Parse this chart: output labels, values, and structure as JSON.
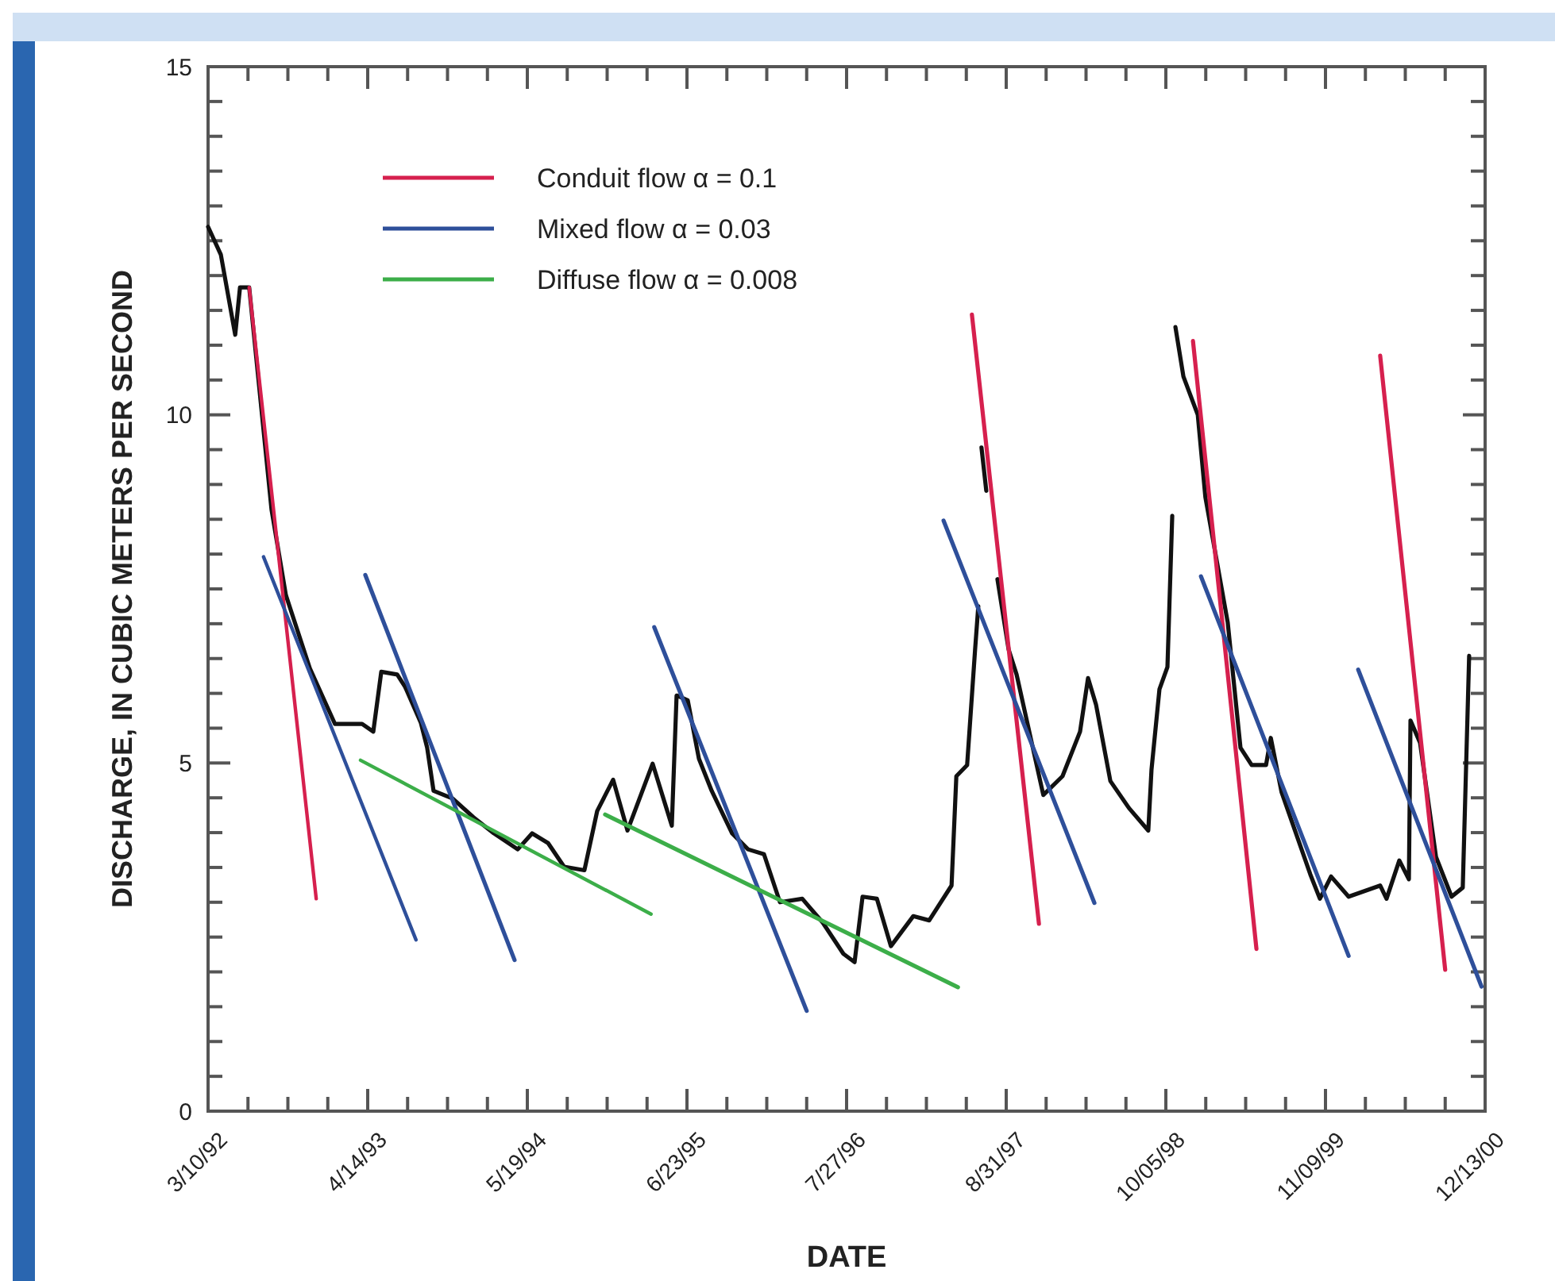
{
  "chart_data": {
    "type": "line",
    "xlabel": "DATE",
    "ylabel": "DISCHARGE, IN CUBIC METERS PER SECOND",
    "xlim": [
      "1992-03-10",
      "2000-12-13"
    ],
    "ylim": [
      0,
      15
    ],
    "xticks": [
      {
        "value": "1992-03-10",
        "label": "3/10/92"
      },
      {
        "value": "1992-06-18",
        "label": null
      },
      {
        "value": "1992-09-26",
        "label": null
      },
      {
        "value": "1993-01-04",
        "label": null
      },
      {
        "value": "1993-04-14",
        "label": "4/14/93"
      },
      {
        "value": "1993-07-23",
        "label": null
      },
      {
        "value": "1993-10-31",
        "label": null
      },
      {
        "value": "1994-02-08",
        "label": null
      },
      {
        "value": "1994-05-19",
        "label": "5/19/94"
      },
      {
        "value": "1994-08-27",
        "label": null
      },
      {
        "value": "1994-12-05",
        "label": null
      },
      {
        "value": "1995-03-15",
        "label": null
      },
      {
        "value": "1995-06-23",
        "label": "6/23/95"
      },
      {
        "value": "1995-10-01",
        "label": null
      },
      {
        "value": "1996-01-09",
        "label": null
      },
      {
        "value": "1996-04-18",
        "label": null
      },
      {
        "value": "1996-07-27",
        "label": "7/27/96"
      },
      {
        "value": "1996-11-04",
        "label": null
      },
      {
        "value": "1997-02-12",
        "label": null
      },
      {
        "value": "1997-05-23",
        "label": null
      },
      {
        "value": "1997-08-31",
        "label": "8/31/97"
      },
      {
        "value": "1997-12-09",
        "label": null
      },
      {
        "value": "1998-03-19",
        "label": null
      },
      {
        "value": "1998-06-27",
        "label": null
      },
      {
        "value": "1998-10-05",
        "label": "10/05/98"
      },
      {
        "value": "1999-01-13",
        "label": null
      },
      {
        "value": "1999-04-23",
        "label": null
      },
      {
        "value": "1999-08-01",
        "label": null
      },
      {
        "value": "1999-11-09",
        "label": "11/09/99"
      },
      {
        "value": "2000-02-17",
        "label": null
      },
      {
        "value": "2000-05-27",
        "label": null
      },
      {
        "value": "2000-09-04",
        "label": null
      },
      {
        "value": "2000-12-13",
        "label": "12/13/00"
      }
    ],
    "yticks": [
      0,
      {
        "value": 0.5,
        "label": null
      },
      {
        "value": 1,
        "label": null
      },
      {
        "value": 1.5,
        "label": null
      },
      {
        "value": 2,
        "label": null
      },
      {
        "value": 2.5,
        "label": null
      },
      {
        "value": 3,
        "label": null
      },
      {
        "value": 3.5,
        "label": null
      },
      {
        "value": 4,
        "label": null
      },
      {
        "value": 4.5,
        "label": null
      },
      5,
      {
        "value": 5.5,
        "label": null
      },
      {
        "value": 6,
        "label": null
      },
      {
        "value": 6.5,
        "label": null
      },
      {
        "value": 7,
        "label": null
      },
      {
        "value": 7.5,
        "label": null
      },
      {
        "value": 8,
        "label": null
      },
      {
        "value": 8.5,
        "label": null
      },
      {
        "value": 9,
        "label": null
      },
      {
        "value": 9.5,
        "label": null
      },
      10,
      {
        "value": 10.5,
        "label": null
      },
      {
        "value": 11,
        "label": null
      },
      {
        "value": 11.5,
        "label": null
      },
      {
        "value": 12,
        "label": null
      },
      {
        "value": 12.5,
        "label": null
      },
      {
        "value": 13,
        "label": null
      },
      {
        "value": 13.5,
        "label": null
      },
      {
        "value": 14,
        "label": null
      },
      {
        "value": 14.5,
        "label": null
      },
      15
    ],
    "grid": false,
    "legend": "top left",
    "marker": "none",
    "line_style": "solid",
    "series": [
      {
        "color": "#111111",
        "x": [
          "1992-03-10",
          "1992-04-11",
          "1992-05-17",
          "1992-05-29",
          "1992-06-21",
          "1992-08-16",
          "1992-09-21",
          "1992-11-20",
          "1993-01-22",
          "1993-03-31",
          "1993-04-28",
          "1993-05-18",
          "1993-06-27",
          "1993-07-17",
          "1993-08-25",
          "1993-09-10",
          "1993-09-26",
          "1993-11-13",
          "1994-01-04",
          "1994-02-24",
          "1994-04-25",
          "1994-05-31",
          "1994-07-10",
          "1994-08-19",
          "1994-10-09",
          "1994-11-10",
          "1994-12-20",
          "1995-01-25",
          "1995-03-29",
          "1995-05-16",
          "1995-05-28",
          "1995-06-25",
          "1995-07-23",
          "1995-08-24",
          "1995-10-14",
          "1995-11-23",
          "1996-01-02",
          "1996-02-11",
          "1996-04-07",
          "1996-05-28",
          "1996-07-19",
          "1996-08-16",
          "1996-09-05",
          "1996-10-11",
          "1996-11-15",
          "1997-01-10",
          "1997-02-19",
          "1997-04-16",
          "1997-04-28",
          "1997-05-25",
          "1997-06-14",
          "1997-06-22"
        ],
        "values": [
          12.7,
          12.3,
          11.15,
          11.83,
          11.83,
          8.64,
          7.41,
          6.36,
          5.56,
          5.56,
          5.45,
          6.31,
          6.27,
          6.09,
          5.58,
          5.22,
          4.6,
          4.49,
          4.22,
          3.99,
          3.76,
          3.99,
          3.85,
          3.51,
          3.46,
          4.31,
          4.76,
          4.03,
          4.99,
          4.1,
          5.97,
          5.9,
          5.06,
          4.6,
          3.99,
          3.76,
          3.69,
          3.0,
          3.05,
          2.71,
          2.26,
          2.14,
          3.08,
          3.05,
          2.37,
          2.8,
          2.74,
          3.24,
          4.81,
          4.97,
          6.63,
          7.25
        ]
      },
      {
        "color": "#111111",
        "x": [
          "1997-06-30",
          "1997-07-12"
        ],
        "values": [
          9.53,
          8.91
        ]
      },
      {
        "color": "#111111",
        "x": [
          "1997-08-09",
          "1997-09-06",
          "1997-09-26",
          "1997-12-02",
          "1998-01-19",
          "1998-03-04",
          "1998-03-24",
          "1998-04-13",
          "1998-05-19",
          "1998-07-05",
          "1998-08-22",
          "1998-08-30",
          "1998-09-19",
          "1998-10-09",
          "1998-10-21"
        ],
        "values": [
          7.64,
          6.63,
          6.27,
          4.54,
          4.81,
          5.45,
          6.22,
          5.84,
          4.74,
          4.35,
          4.03,
          4.9,
          6.06,
          6.38,
          8.55
        ]
      },
      {
        "color": "#111111",
        "x": [
          "1998-10-29",
          "1998-11-18",
          "1998-12-24",
          "1999-01-12",
          "1999-03-09",
          "1999-04-10",
          "1999-05-08",
          "1999-06-13",
          "1999-06-25",
          "1999-07-22",
          "1999-10-02",
          "1999-10-26",
          "1999-11-23",
          "2000-01-06",
          "2000-03-25",
          "2000-04-10",
          "2000-05-12",
          "2000-06-05",
          "2000-06-09",
          "2000-07-03",
          "2000-08-12",
          "2000-09-20",
          "2000-10-18",
          "2000-11-03"
        ],
        "values": [
          11.26,
          10.55,
          10.0,
          8.82,
          7.02,
          5.22,
          4.97,
          4.97,
          5.36,
          4.58,
          3.4,
          3.05,
          3.37,
          3.08,
          3.24,
          3.05,
          3.6,
          3.33,
          5.61,
          5.29,
          3.65,
          3.08,
          3.21,
          6.54
        ]
      },
      {
        "name": "Conduit flow α = 0.1",
        "color": "#d6204e",
        "x": [
          "1992-06-21",
          "1992-12-06"
        ],
        "values": [
          11.83,
          3.05
        ]
      },
      {
        "color": "#d6204e",
        "x": [
          "1997-06-06",
          "1997-11-21"
        ],
        "values": [
          11.44,
          2.69
        ]
      },
      {
        "color": "#d6204e",
        "x": [
          "1998-12-12",
          "1999-05-20"
        ],
        "values": [
          11.06,
          2.33
        ]
      },
      {
        "color": "#d6204e",
        "x": [
          "2000-03-25",
          "2000-09-04"
        ],
        "values": [
          10.85,
          2.03
        ]
      },
      {
        "name": "Mixed flow α = 0.03",
        "color": "#2e4f9a",
        "x": [
          "1992-07-27",
          "1993-08-13"
        ],
        "values": [
          7.96,
          2.46
        ]
      },
      {
        "color": "#2e4f9a",
        "x": [
          "1993-04-08",
          "1994-04-17"
        ],
        "values": [
          7.7,
          2.17
        ]
      },
      {
        "color": "#2e4f9a",
        "x": [
          "1995-04-02",
          "1996-04-18"
        ],
        "values": [
          6.95,
          1.44
        ]
      },
      {
        "color": "#2e4f9a",
        "x": [
          "1997-03-27",
          "1998-04-09"
        ],
        "values": [
          8.48,
          2.99
        ]
      },
      {
        "color": "#2e4f9a",
        "x": [
          "1999-01-01",
          "2000-01-06"
        ],
        "values": [
          7.68,
          2.23
        ]
      },
      {
        "color": "#2e4f9a",
        "x": [
          "2000-01-30",
          "2000-12-04"
        ],
        "values": [
          6.34,
          1.79
        ]
      },
      {
        "name": "Diffuse flow α = 0.008",
        "color": "#3cae49",
        "x": [
          "1993-03-27",
          "1995-03-25"
        ],
        "values": [
          5.04,
          2.83
        ]
      },
      {
        "color": "#3cae49",
        "x": [
          "1994-11-30",
          "1997-05-02"
        ],
        "values": [
          4.26,
          1.78
        ]
      }
    ]
  }
}
